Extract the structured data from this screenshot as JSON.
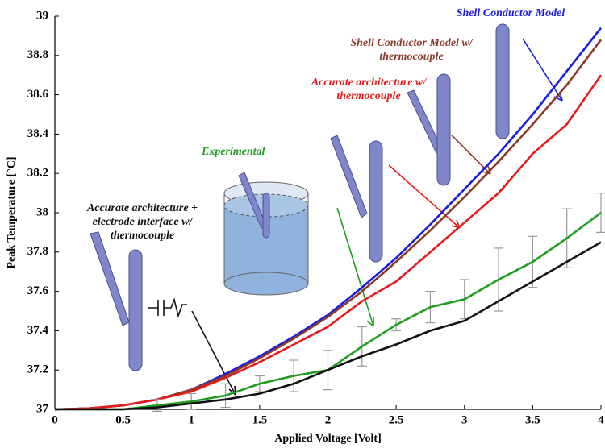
{
  "chart_data": {
    "type": "line",
    "xlabel": "Applied Voltage [Volt]",
    "ylabel": "Peak Temperature [°C]",
    "x": [
      0,
      0.25,
      0.5,
      0.75,
      1,
      1.25,
      1.5,
      1.75,
      2,
      2.25,
      2.5,
      2.75,
      3,
      3.25,
      3.5,
      3.75,
      4
    ],
    "xlim": [
      0,
      4
    ],
    "xticks": [
      0,
      0.5,
      1,
      1.5,
      2,
      2.5,
      3,
      3.5,
      4
    ],
    "ylim": [
      37,
      39
    ],
    "yticks": [
      37,
      37.2,
      37.4,
      37.6,
      37.8,
      38,
      38.2,
      38.4,
      38.6,
      38.8,
      39
    ],
    "grid": false,
    "series": [
      {
        "name": "Shell Conductor Model",
        "color": "#1a1ae6",
        "values": [
          37,
          37.005,
          37.02,
          37.05,
          37.1,
          37.18,
          37.27,
          37.37,
          37.48,
          37.62,
          37.77,
          37.94,
          38.12,
          38.3,
          38.5,
          38.72,
          38.94
        ]
      },
      {
        "name": "Shell Conductor Model w/ thermocouple",
        "color": "#8b3a2a",
        "values": [
          37,
          37.005,
          37.02,
          37.05,
          37.1,
          37.17,
          37.26,
          37.36,
          37.47,
          37.6,
          37.75,
          37.91,
          38.08,
          38.26,
          38.45,
          38.65,
          38.88
        ]
      },
      {
        "name": "Accurate architecture w/ thermocouple",
        "color": "#e61a1a",
        "values": [
          37,
          37.005,
          37.02,
          37.05,
          37.09,
          37.16,
          37.24,
          37.33,
          37.42,
          37.55,
          37.65,
          37.8,
          37.95,
          38.1,
          38.3,
          38.45,
          38.7
        ]
      },
      {
        "name": "Experimental",
        "color": "#1e9e1e",
        "values": [
          37,
          37,
          37,
          37.02,
          37.04,
          37.07,
          37.13,
          37.17,
          37.2,
          37.32,
          37.43,
          37.52,
          37.56,
          37.66,
          37.75,
          37.87,
          38
        ],
        "errors": [
          null,
          null,
          null,
          0.03,
          0.04,
          0.06,
          0.04,
          0.08,
          0.1,
          0.1,
          0.03,
          0.08,
          0.1,
          0.16,
          0.13,
          0.15,
          0.1
        ]
      },
      {
        "name": "Accurate architecture + electrode interface w/ thermocouple",
        "color": "#111111",
        "values": [
          37,
          37,
          37,
          37.01,
          37.03,
          37.05,
          37.08,
          37.13,
          37.2,
          37.27,
          37.33,
          37.4,
          37.45,
          37.55,
          37.65,
          37.75,
          37.85
        ]
      }
    ]
  }
}
